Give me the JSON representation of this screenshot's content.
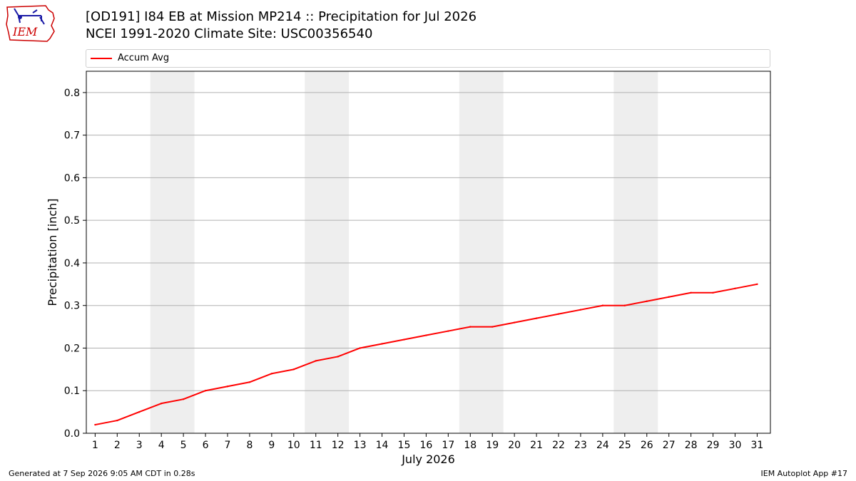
{
  "header": {
    "title_line1": "[OD191] I84 EB at Mission MP214  :: Precipitation for Jul 2026",
    "title_line2": "NCEI 1991-2020 Climate Site: USC00356540",
    "logo_text": "IEM"
  },
  "footer": {
    "left": "Generated at 7 Sep 2026 9:05 AM CDT in 0.28s",
    "right": "IEM Autoplot App #17"
  },
  "colors": {
    "series": "#ff0000",
    "weekend_band": "#eeeeee",
    "grid": "#b0b0b0",
    "logo": "#cc0000"
  },
  "chart_data": {
    "type": "line",
    "xlabel": "July 2026",
    "ylabel": "Precipitation [inch]",
    "x": [
      1,
      2,
      3,
      4,
      5,
      6,
      7,
      8,
      9,
      10,
      11,
      12,
      13,
      14,
      15,
      16,
      17,
      18,
      19,
      20,
      21,
      22,
      23,
      24,
      25,
      26,
      27,
      28,
      29,
      30,
      31
    ],
    "xlim": [
      0.6,
      31.6
    ],
    "ylim": [
      0,
      0.85
    ],
    "yticks": [
      0.0,
      0.1,
      0.2,
      0.3,
      0.4,
      0.5,
      0.6,
      0.7,
      0.8
    ],
    "ytick_labels": [
      "0.0",
      "0.1",
      "0.2",
      "0.3",
      "0.4",
      "0.5",
      "0.6",
      "0.7",
      "0.8"
    ],
    "grid": "horizontal",
    "legend_position": "top",
    "weekend_bands": [
      [
        4,
        5
      ],
      [
        11,
        12
      ],
      [
        18,
        19
      ],
      [
        25,
        26
      ]
    ],
    "series": [
      {
        "name": "Accum Avg",
        "values": [
          0.02,
          0.03,
          0.05,
          0.07,
          0.08,
          0.1,
          0.11,
          0.12,
          0.14,
          0.15,
          0.17,
          0.18,
          0.2,
          0.21,
          0.22,
          0.23,
          0.24,
          0.25,
          0.25,
          0.26,
          0.27,
          0.28,
          0.29,
          0.3,
          0.3,
          0.31,
          0.32,
          0.33,
          0.33,
          0.34,
          0.35
        ]
      }
    ]
  }
}
